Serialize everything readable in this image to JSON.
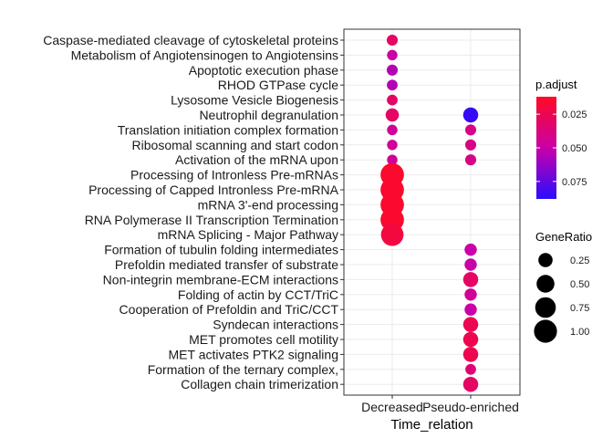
{
  "chart_data": {
    "type": "scatter",
    "xlabel": "Time_relation",
    "ylabel": "",
    "x_categories": [
      "Decreased",
      "Pseudo-enriched"
    ],
    "y_categories": [
      "Caspase-mediated cleavage of cytoskeletal proteins",
      "Metabolism of Angiotensinogen to Angiotensins",
      "Apoptotic execution phase",
      "RHOD GTPase cycle",
      "Lysosome Vesicle Biogenesis",
      "Neutrophil degranulation",
      "Translation initiation complex formation",
      "Ribosomal scanning and start codon",
      "Activation of the mRNA upon",
      "Processing of Intronless Pre-mRNAs",
      "Processing of Capped Intronless Pre-mRNA",
      "mRNA 3'-end processing",
      "RNA Polymerase II Transcription Termination",
      "mRNA Splicing - Major Pathway",
      "Formation of tubulin folding intermediates",
      "Prefoldin mediated transfer of substrate",
      "Non-integrin membrane-ECM interactions",
      "Folding of actin by CCT/TriC",
      "Cooperation of Prefoldin and TriC/CCT",
      "Syndecan interactions",
      "MET promotes cell motility",
      "MET activates PTK2 signaling",
      "Formation of the ternary complex,",
      "Collagen chain trimerization"
    ],
    "points": [
      {
        "term": "Caspase-mediated cleavage of cytoskeletal proteins",
        "group": "Decreased",
        "gene_ratio": 0.1,
        "p_adjust": 0.03
      },
      {
        "term": "Metabolism of Angiotensinogen to Angiotensins",
        "group": "Decreased",
        "gene_ratio": 0.08,
        "p_adjust": 0.05
      },
      {
        "term": "Apoptotic execution phase",
        "group": "Decreased",
        "gene_ratio": 0.1,
        "p_adjust": 0.055
      },
      {
        "term": "RHOD GTPase cycle",
        "group": "Decreased",
        "gene_ratio": 0.09,
        "p_adjust": 0.055
      },
      {
        "term": "Lysosome Vesicle Biogenesis",
        "group": "Decreased",
        "gene_ratio": 0.09,
        "p_adjust": 0.03
      },
      {
        "term": "Neutrophil degranulation",
        "group": "Decreased",
        "gene_ratio": 0.2,
        "p_adjust": 0.03
      },
      {
        "term": "Neutrophil degranulation",
        "group": "Pseudo-enriched",
        "gene_ratio": 0.3,
        "p_adjust": 0.085
      },
      {
        "term": "Translation initiation complex formation",
        "group": "Decreased",
        "gene_ratio": 0.08,
        "p_adjust": 0.045
      },
      {
        "term": "Translation initiation complex formation",
        "group": "Pseudo-enriched",
        "gene_ratio": 0.1,
        "p_adjust": 0.04
      },
      {
        "term": "Ribosomal scanning and start codon",
        "group": "Decreased",
        "gene_ratio": 0.08,
        "p_adjust": 0.045
      },
      {
        "term": "Ribosomal scanning and start codon",
        "group": "Pseudo-enriched",
        "gene_ratio": 0.1,
        "p_adjust": 0.04
      },
      {
        "term": "Activation of the mRNA upon",
        "group": "Decreased",
        "gene_ratio": 0.08,
        "p_adjust": 0.045
      },
      {
        "term": "Activation of the mRNA upon",
        "group": "Pseudo-enriched",
        "gene_ratio": 0.1,
        "p_adjust": 0.04
      },
      {
        "term": "Processing of Intronless Pre-mRNAs",
        "group": "Decreased",
        "gene_ratio": 1.05,
        "p_adjust": 0.015
      },
      {
        "term": "Processing of Capped Intronless Pre-mRNA",
        "group": "Decreased",
        "gene_ratio": 1.05,
        "p_adjust": 0.015
      },
      {
        "term": "mRNA 3'-end processing",
        "group": "Decreased",
        "gene_ratio": 1.05,
        "p_adjust": 0.015
      },
      {
        "term": "RNA Polymerase II Transcription Termination",
        "group": "Decreased",
        "gene_ratio": 1.05,
        "p_adjust": 0.015
      },
      {
        "term": "mRNA Splicing - Major Pathway",
        "group": "Decreased",
        "gene_ratio": 0.95,
        "p_adjust": 0.02
      },
      {
        "term": "Formation of tubulin folding intermediates",
        "group": "Pseudo-enriched",
        "gene_ratio": 0.15,
        "p_adjust": 0.05
      },
      {
        "term": "Prefoldin mediated transfer of substrate",
        "group": "Pseudo-enriched",
        "gene_ratio": 0.15,
        "p_adjust": 0.05
      },
      {
        "term": "Non-integrin membrane-ECM interactions",
        "group": "Pseudo-enriched",
        "gene_ratio": 0.3,
        "p_adjust": 0.03
      },
      {
        "term": "Folding of actin by CCT/TriC",
        "group": "Pseudo-enriched",
        "gene_ratio": 0.15,
        "p_adjust": 0.045
      },
      {
        "term": "Cooperation of Prefoldin and TriC/CCT",
        "group": "Pseudo-enriched",
        "gene_ratio": 0.15,
        "p_adjust": 0.05
      },
      {
        "term": "Syndecan interactions",
        "group": "Pseudo-enriched",
        "gene_ratio": 0.3,
        "p_adjust": 0.025
      },
      {
        "term": "MET promotes cell motility",
        "group": "Pseudo-enriched",
        "gene_ratio": 0.3,
        "p_adjust": 0.025
      },
      {
        "term": "MET activates PTK2 signaling",
        "group": "Pseudo-enriched",
        "gene_ratio": 0.3,
        "p_adjust": 0.025
      },
      {
        "term": "Formation of the ternary complex,",
        "group": "Pseudo-enriched",
        "gene_ratio": 0.09,
        "p_adjust": 0.035
      },
      {
        "term": "Collagen chain trimerization",
        "group": "Pseudo-enriched",
        "gene_ratio": 0.3,
        "p_adjust": 0.03
      }
    ],
    "color_legend": {
      "title": "p.adjust",
      "ticks": [
        0.025,
        0.05,
        0.075
      ],
      "tick_labels": [
        "0.025",
        "0.050",
        "0.075"
      ],
      "range": [
        0.012,
        0.088
      ],
      "low_color": "#ff0000",
      "high_color": "#0000ff"
    },
    "size_legend": {
      "title": "GeneRatio",
      "values": [
        0.25,
        0.5,
        0.75,
        1.0
      ],
      "labels": [
        "0.25",
        "0.50",
        "0.75",
        "1.00"
      ]
    },
    "grid": true,
    "legend_position": "right"
  }
}
